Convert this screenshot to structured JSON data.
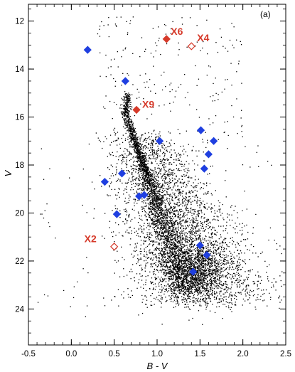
{
  "chart_data": {
    "type": "scatter",
    "panel_label": "(a)",
    "xlabel": "B - V",
    "ylabel": "V",
    "xlim": [
      -0.5,
      2.5
    ],
    "ylim": [
      25.5,
      11.3
    ],
    "y_inverted": true,
    "x_ticks": [
      -0.5,
      0.0,
      0.5,
      1.0,
      1.5,
      2.0,
      2.5
    ],
    "x_tick_labels": [
      "-0.5",
      "0.0",
      "0.5",
      "1.0",
      "1.5",
      "2.0",
      "2.5"
    ],
    "y_ticks": [
      12,
      14,
      16,
      18,
      20,
      22,
      24
    ],
    "y_tick_labels": [
      "12",
      "14",
      "16",
      "18",
      "20",
      "22",
      "24"
    ],
    "colors": {
      "field_stars": "#000000",
      "highlight": "#1f3fe0",
      "source": "#d63a2a"
    },
    "series": [
      {
        "marker": "dot",
        "color": "#000000",
        "description_points": "dense black field-star points (thousands); main sequence from about (0.62, 15.2) curving to (1.35, 21.5), broad cloud from V≈17 to V≈23.5"
      },
      {
        "marker": "filled-diamond",
        "color": "#1f3fe0",
        "points": [
          {
            "x": 0.19,
            "y": 13.2
          },
          {
            "x": 0.63,
            "y": 14.5
          },
          {
            "x": 1.03,
            "y": 17.0
          },
          {
            "x": 1.51,
            "y": 16.55
          },
          {
            "x": 1.66,
            "y": 17.0
          },
          {
            "x": 1.6,
            "y": 17.55
          },
          {
            "x": 1.55,
            "y": 18.15
          },
          {
            "x": 0.59,
            "y": 18.35
          },
          {
            "x": 0.39,
            "y": 18.7
          },
          {
            "x": 0.85,
            "y": 19.25
          },
          {
            "x": 0.79,
            "y": 19.3
          },
          {
            "x": 0.53,
            "y": 20.05
          },
          {
            "x": 1.5,
            "y": 21.35
          },
          {
            "x": 1.58,
            "y": 21.75
          },
          {
            "x": 1.42,
            "y": 22.45
          }
        ]
      }
    ],
    "labeled_sources": [
      {
        "label": "X6",
        "x": 1.11,
        "y": 12.75,
        "filled": true
      },
      {
        "label": "X4",
        "x": 1.4,
        "y": 13.05,
        "filled": false
      },
      {
        "label": "X9",
        "x": 0.76,
        "y": 15.7,
        "filled": true
      },
      {
        "label": "X2",
        "x": 0.5,
        "y": 21.4,
        "filled": false
      }
    ]
  }
}
